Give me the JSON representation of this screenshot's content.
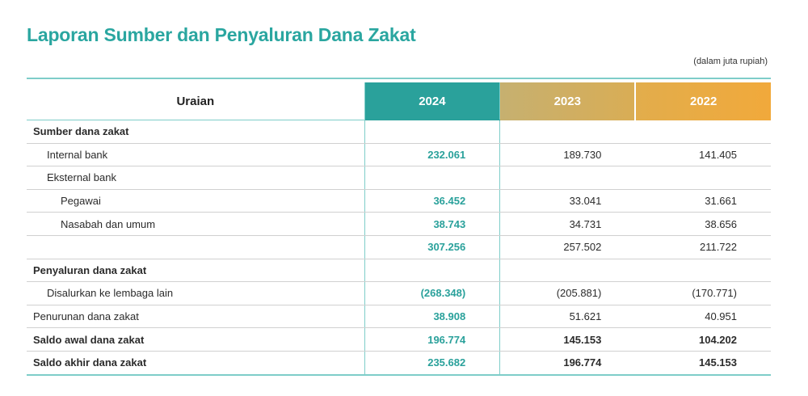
{
  "title": "Laporan Sumber dan Penyaluran Dana Zakat",
  "unit_note": "(dalam juta rupiah)",
  "columns": {
    "label": "Uraian",
    "y2024": "2024",
    "y2023": "2023",
    "y2022": "2022"
  },
  "colors": {
    "accent_teal": "#2aa19b",
    "header_2023": "#d1b067",
    "header_2022": "#f1a93b"
  },
  "rows": [
    {
      "label": "Sumber dana zakat",
      "v2024": "",
      "v2023": "",
      "v2022": ""
    },
    {
      "label": "Internal bank",
      "v2024": "232.061",
      "v2023": "189.730",
      "v2022": "141.405"
    },
    {
      "label": "Eksternal bank",
      "v2024": "",
      "v2023": "",
      "v2022": ""
    },
    {
      "label": "Pegawai",
      "v2024": "36.452",
      "v2023": "33.041",
      "v2022": "31.661"
    },
    {
      "label": "Nasabah dan umum",
      "v2024": "38.743",
      "v2023": "34.731",
      "v2022": "38.656"
    },
    {
      "label": "",
      "v2024": "307.256",
      "v2023": "257.502",
      "v2022": "211.722"
    },
    {
      "label": "Penyaluran dana zakat",
      "v2024": "",
      "v2023": "",
      "v2022": ""
    },
    {
      "label": "Disalurkan ke lembaga lain",
      "v2024": "(268.348)",
      "v2023": "(205.881)",
      "v2022": "(170.771)"
    },
    {
      "label": "Penurunan dana zakat",
      "v2024": "38.908",
      "v2023": "51.621",
      "v2022": "40.951"
    },
    {
      "label": "Saldo awal dana zakat",
      "v2024": "196.774",
      "v2023": "145.153",
      "v2022": "104.202"
    },
    {
      "label": "Saldo akhir dana zakat",
      "v2024": "235.682",
      "v2023": "196.774",
      "v2022": "145.153"
    }
  ]
}
